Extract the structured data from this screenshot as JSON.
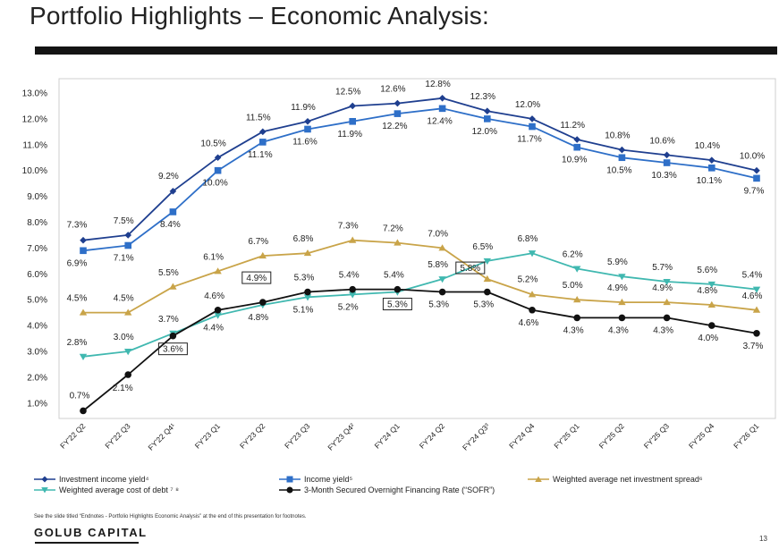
{
  "page": {
    "title": "Portfolio Highlights – Economic Analysis:",
    "footnote": "See the slide titled “Endnotes - Portfolio Highlights Economic Analysis” at the end of this presentation for footnotes.",
    "brand": "GOLUB CAPITAL",
    "page_number": "13"
  },
  "chart_data": {
    "type": "line",
    "ylim": [
      0.7,
      13.0
    ],
    "y_ticks": [
      "1.0%",
      "2.0%",
      "3.0%",
      "4.0%",
      "5.0%",
      "6.0%",
      "7.0%",
      "8.0%",
      "9.0%",
      "10.0%",
      "11.0%",
      "12.0%",
      "13.0%"
    ],
    "categories": [
      "FY'22 Q2",
      "FY'22 Q3",
      "FY'22 Q4¹",
      "FY'23 Q1",
      "FY'23 Q2",
      "FY'23 Q3",
      "FY'23 Q4²",
      "FY'24 Q1",
      "FY'24 Q2",
      "FY'24 Q3³",
      "FY'24 Q4",
      "FY'25 Q1",
      "FY'25 Q2",
      "FY'25 Q3",
      "FY'25 Q4",
      "FY'26 Q1"
    ],
    "series": [
      {
        "name": "Investment income yield⁴",
        "color": "#1f3f8f",
        "marker": "diamond",
        "values": [
          7.3,
          7.5,
          9.2,
          10.5,
          11.5,
          11.9,
          12.5,
          12.6,
          12.8,
          12.3,
          12.0,
          11.2,
          10.8,
          10.6,
          10.4,
          10.0
        ],
        "labels": [
          "7.3%",
          "7.5%",
          "9.2%",
          "10.5%",
          "11.5%",
          "11.9%",
          "12.5%",
          "12.6%",
          "12.8%",
          "12.3%",
          "12.0%",
          "11.2%",
          "10.8%",
          "10.6%",
          "10.4%",
          "10.0%"
        ]
      },
      {
        "name": "Income yield⁵",
        "color": "#2e6fc8",
        "marker": "square",
        "values": [
          6.9,
          7.1,
          8.4,
          10.0,
          11.1,
          11.6,
          11.9,
          12.2,
          12.4,
          12.0,
          11.7,
          10.9,
          10.5,
          10.3,
          10.1,
          9.7
        ],
        "labels": [
          "6.9%",
          "7.1%",
          "8.4%",
          "10.0%",
          "11.1%",
          "11.6%",
          "11.9%",
          "12.2%",
          "12.4%",
          "12.0%",
          "11.7%",
          "10.9%",
          "10.5%",
          "10.3%",
          "10.1%",
          "9.7%"
        ]
      },
      {
        "name": "Weighted average net investment spread⁶",
        "color": "#c9a449",
        "marker": "triangle-up",
        "values": [
          4.5,
          4.5,
          5.5,
          6.1,
          6.7,
          6.8,
          7.3,
          7.2,
          7.0,
          5.8,
          5.2,
          5.0,
          4.9,
          4.9,
          4.8,
          4.6
        ],
        "labels": [
          "4.5%",
          "4.5%",
          "5.5%",
          "6.1%",
          "6.7%",
          "6.8%",
          "7.3%",
          "7.2%",
          "7.0%",
          "5.8%",
          "5.2%",
          "5.0%",
          "4.9%",
          "4.9%",
          "4.8%",
          "4.6%"
        ]
      },
      {
        "name": "Weighted average cost of debt ⁷ ⁸",
        "color": "#40b8b0",
        "marker": "triangle-down",
        "values": [
          2.8,
          3.0,
          3.7,
          4.4,
          4.8,
          5.1,
          5.2,
          5.3,
          5.8,
          6.5,
          6.8,
          6.2,
          5.9,
          5.7,
          5.6,
          5.4
        ],
        "labels": [
          "2.8%",
          "3.0%",
          "3.7%",
          "4.4%",
          "4.8%",
          "5.1%",
          "5.2%",
          "5.3%",
          "5.8%",
          "6.5%",
          "6.8%",
          "6.2%",
          "5.9%",
          "5.7%",
          "5.6%",
          "5.4%"
        ]
      },
      {
        "name": "3-Month Secured Overnight Financing Rate (“SOFR”)",
        "color": "#111111",
        "marker": "circle",
        "values": [
          0.7,
          2.1,
          3.6,
          4.6,
          4.9,
          5.3,
          5.4,
          5.4,
          5.3,
          5.3,
          4.6,
          4.3,
          4.3,
          4.3,
          4.0,
          3.7
        ],
        "labels": [
          "0.7%",
          "2.1%",
          "3.6%",
          "4.6%",
          "4.9%",
          "5.3%",
          "5.4%",
          "5.4%",
          "5.3%",
          "5.3%",
          "4.6%",
          "4.3%",
          "4.3%",
          "4.3%",
          "4.0%",
          "3.7%"
        ]
      }
    ],
    "boxed_labels": [
      {
        "series": 4,
        "index": 2
      },
      {
        "series": 4,
        "index": 4
      },
      {
        "series": 3,
        "index": 7
      },
      {
        "series": 2,
        "index": 9
      }
    ],
    "grid": false,
    "legend_placement": "bottom"
  }
}
